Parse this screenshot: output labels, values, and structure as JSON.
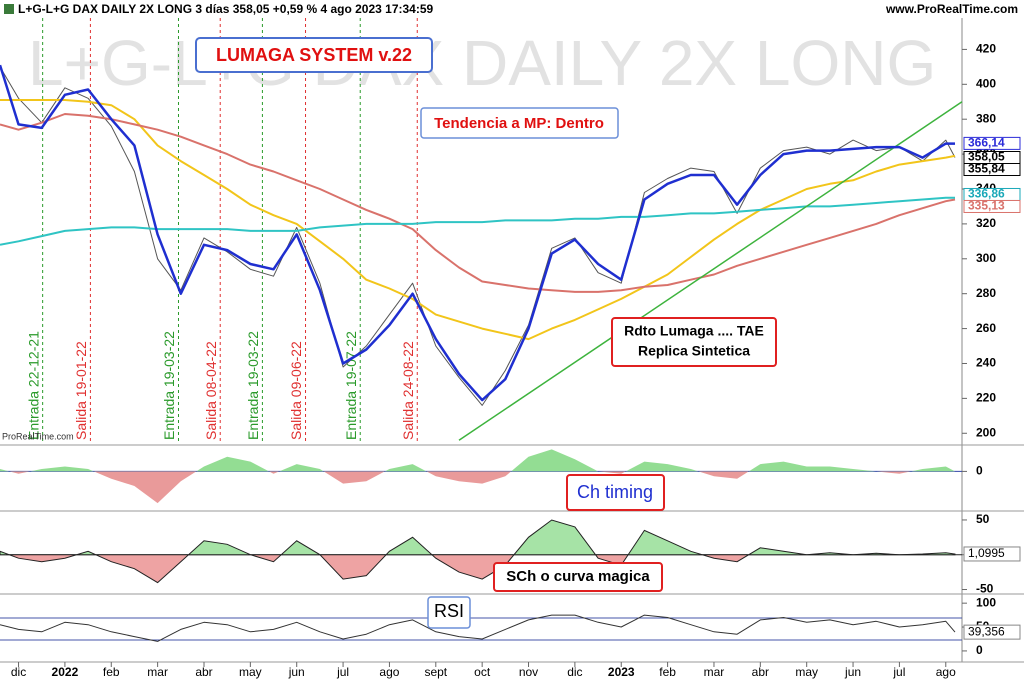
{
  "header": {
    "title": "L+G-L+G DAX DAILY 2X LONG 3 días 358,05 +0,59 % 4 ago 2023 17:34:59",
    "site": "www.ProRealTime.com"
  },
  "chart_data": [
    {
      "type": "line",
      "watermark": "L+G-L+G DAX DAILY 2X LONG",
      "annotations": [
        "LUMAGA SYSTEM v.22",
        "Tendencia a MP: Dentro",
        "Rdto Lumaga .... TAE",
        "Replica Sintetica",
        "ProRealTime.com"
      ],
      "xlim": [
        -0.4,
        20.35
      ],
      "ylim": [
        195,
        438
      ],
      "yticks": [
        200,
        220,
        240,
        260,
        280,
        300,
        320,
        340,
        360,
        380,
        400,
        420
      ],
      "x": [
        -0.4,
        0,
        0.5,
        1,
        1.5,
        2,
        2.5,
        3,
        3.5,
        4,
        4.5,
        5,
        5.5,
        6,
        6.5,
        7,
        7.5,
        8,
        8.5,
        9,
        9.5,
        10,
        10.5,
        11,
        11.5,
        12,
        12.5,
        13,
        13.5,
        14,
        14.5,
        15,
        15.5,
        16,
        16.5,
        17,
        17.5,
        18,
        18.5,
        19,
        19.5,
        20,
        20.2
      ],
      "series": [
        {
          "color": "#555555",
          "width": 1,
          "values": [
            410,
            392,
            378,
            398,
            392,
            376,
            350,
            300,
            282,
            312,
            304,
            294,
            290,
            318,
            286,
            238,
            250,
            268,
            286,
            250,
            232,
            216,
            236,
            262,
            306,
            312,
            292,
            286,
            338,
            346,
            352,
            350,
            326,
            352,
            362,
            364,
            360,
            368,
            362,
            364,
            356,
            368,
            358.05
          ]
        },
        {
          "color": "#f2c51a",
          "width": 2,
          "values": [
            391,
            391,
            391,
            391,
            390,
            388,
            380,
            365,
            356,
            348,
            340,
            331,
            325,
            320,
            310,
            300,
            288,
            283,
            277,
            268,
            264,
            260,
            257,
            254,
            260,
            265,
            271,
            277,
            284,
            291,
            301,
            311,
            320,
            328,
            334,
            340,
            343,
            345,
            350,
            354,
            356,
            358,
            359
          ]
        },
        {
          "color": "#d9726b",
          "width": 2,
          "values": [
            377,
            374,
            378,
            383,
            382,
            380,
            377,
            374,
            370,
            365,
            360,
            354,
            350,
            345,
            340,
            334,
            328,
            323,
            317,
            305,
            295,
            287,
            285,
            283,
            282,
            281,
            281,
            282,
            284,
            285,
            288,
            291,
            296,
            300,
            304,
            308,
            312,
            316,
            320,
            325,
            329,
            333,
            334
          ]
        },
        {
          "color": "#2fc4c4",
          "width": 2,
          "values": [
            308,
            310,
            313,
            316,
            317,
            318,
            318,
            317,
            317,
            317,
            317,
            316,
            316,
            316,
            318,
            319,
            320,
            320,
            320,
            321,
            321,
            321,
            322,
            322,
            322,
            323,
            323,
            324,
            324,
            325,
            326,
            326,
            327,
            328,
            329,
            330,
            330,
            331,
            332,
            333,
            334,
            335,
            335
          ]
        },
        {
          "color": "#3db33d",
          "width": 1.5,
          "x": [
            9.5,
            20.35
          ],
          "values": [
            196,
            390
          ]
        },
        {
          "color": "#1f2fd0",
          "width": 2.5,
          "values": [
            411,
            377,
            375,
            394,
            397,
            380,
            365,
            314,
            280,
            308,
            305,
            297,
            294,
            314,
            282,
            240,
            248,
            262,
            280,
            254,
            234,
            219,
            231,
            260,
            303,
            311,
            297,
            288,
            334,
            343,
            348,
            348,
            331,
            348,
            360,
            362,
            362,
            363,
            364,
            364,
            358,
            366,
            366
          ]
        }
      ],
      "signals": [
        {
          "x": 0.52,
          "label": "Entrada 22-12-21",
          "color": "#2a9a2a"
        },
        {
          "x": 1.55,
          "label": "Salida 19-01-22",
          "color": "#e03030"
        },
        {
          "x": 3.45,
          "label": "Entrada 19-03-22",
          "color": "#2a9a2a"
        },
        {
          "x": 4.35,
          "label": "Salida 08-04-22",
          "color": "#e03030"
        },
        {
          "x": 5.26,
          "label": "Entrada 19-03-22",
          "color": "#2a9a2a"
        },
        {
          "x": 6.19,
          "label": "Salida 09-06-22",
          "color": "#e03030"
        },
        {
          "x": 7.37,
          "label": "Entrada 19-07-22",
          "color": "#2a9a2a"
        },
        {
          "x": 8.6,
          "label": "Salida 24-08-22",
          "color": "#e03030"
        }
      ],
      "price_labels": [
        {
          "value": 366.14,
          "label": "366,14",
          "color": "#2b2bd8"
        },
        {
          "value": 358.05,
          "label": "358,05",
          "color": "#000000"
        },
        {
          "value": 355.84,
          "label": "355,84",
          "color": "#000000"
        },
        {
          "value": 336.86,
          "label": "336,86",
          "color": "#1aa8b8"
        },
        {
          "value": 335.13,
          "label": "335,13",
          "color": "#d9726b"
        }
      ]
    },
    {
      "type": "area",
      "annotation": "Ch timing",
      "fill_colors": [
        "#93dd93",
        "#e99a9a"
      ],
      "line_color": null,
      "xlim": [
        -0.4,
        20.35
      ],
      "ylim": [
        -1.5,
        1.0
      ],
      "yticks": [
        0
      ],
      "x": [
        -0.4,
        0,
        0.5,
        1,
        1.5,
        2,
        2.5,
        3,
        3.5,
        4,
        4.5,
        5,
        5.5,
        6,
        6.5,
        7,
        7.5,
        8,
        8.5,
        9,
        9.5,
        10,
        10.5,
        11,
        11.5,
        12,
        12.5,
        13,
        13.5,
        14,
        14.5,
        15,
        15.5,
        16,
        16.5,
        17,
        17.5,
        18,
        18.5,
        19,
        19.5,
        20,
        20.2
      ],
      "values": [
        0.1,
        -0.1,
        0.1,
        0.2,
        0.1,
        -0.3,
        -0.6,
        -1.3,
        -0.4,
        0.2,
        0.6,
        0.4,
        -0.1,
        0.3,
        0.1,
        -0.5,
        -0.4,
        0.1,
        0.3,
        -0.2,
        -0.4,
        -0.5,
        -0.2,
        0.6,
        0.9,
        0.5,
        0.0,
        -0.1,
        0.4,
        0.3,
        0.1,
        -0.2,
        -0.3,
        0.3,
        0.4,
        0.2,
        0.2,
        0.1,
        0.0,
        -0.1,
        0.1,
        0.2,
        0.0
      ]
    },
    {
      "type": "area",
      "annotation": "SCh o curva magica",
      "fill_colors": [
        "#a6e3a6",
        "#eea3a3"
      ],
      "line_color": "#222222",
      "xlim": [
        -0.4,
        20.35
      ],
      "ylim": [
        -55,
        60
      ],
      "yticks": [
        -50,
        0,
        50
      ],
      "current": {
        "value": 1.0995,
        "label": "1,0995"
      },
      "x": [
        -0.4,
        0,
        0.5,
        1,
        1.5,
        2,
        2.5,
        3,
        3.5,
        4,
        4.5,
        5,
        5.5,
        6,
        6.5,
        7,
        7.5,
        8,
        8.5,
        9,
        9.5,
        10,
        10.5,
        11,
        11.5,
        12,
        12.5,
        13,
        13.5,
        14,
        14.5,
        15,
        15.5,
        16,
        16.5,
        17,
        17.5,
        18,
        18.5,
        19,
        19.5,
        20,
        20.2
      ],
      "values": [
        5,
        -5,
        -10,
        -5,
        5,
        -10,
        -20,
        -40,
        -10,
        20,
        15,
        0,
        -10,
        20,
        0,
        -35,
        -30,
        5,
        25,
        -5,
        -25,
        -35,
        -15,
        25,
        50,
        40,
        -5,
        -15,
        35,
        20,
        5,
        -5,
        -10,
        10,
        5,
        0,
        3,
        0,
        2,
        0,
        1,
        3,
        1.0995
      ]
    },
    {
      "type": "line",
      "annotation": "RSI",
      "xlim": [
        -0.4,
        20.35
      ],
      "ylim": [
        -19,
        115
      ],
      "yticks": [
        0,
        50,
        100
      ],
      "current": {
        "value": 39.356,
        "label": "39,356"
      },
      "xticks": [
        {
          "value": 0,
          "label": "dic"
        },
        {
          "value": 1,
          "label": "2022"
        },
        {
          "value": 2,
          "label": "feb"
        },
        {
          "value": 3,
          "label": "mar"
        },
        {
          "value": 4,
          "label": "abr"
        },
        {
          "value": 5,
          "label": "may"
        },
        {
          "value": 6,
          "label": "jun"
        },
        {
          "value": 7,
          "label": "jul"
        },
        {
          "value": 8,
          "label": "ago"
        },
        {
          "value": 9,
          "label": "sept"
        },
        {
          "value": 10,
          "label": "oct"
        },
        {
          "value": 11,
          "label": "nov"
        },
        {
          "value": 12,
          "label": "dic"
        },
        {
          "value": 13,
          "label": "2023"
        },
        {
          "value": 14,
          "label": "feb"
        },
        {
          "value": 15,
          "label": "mar"
        },
        {
          "value": 16,
          "label": "abr"
        },
        {
          "value": 17,
          "label": "may"
        },
        {
          "value": 18,
          "label": "jun"
        },
        {
          "value": 19,
          "label": "jul"
        },
        {
          "value": 20,
          "label": "ago"
        }
      ],
      "x": [
        -0.4,
        0,
        0.5,
        1,
        1.5,
        2,
        2.5,
        3,
        3.5,
        4,
        4.5,
        5,
        5.5,
        6,
        6.5,
        7,
        7.5,
        8,
        8.5,
        9,
        9.5,
        10,
        10.5,
        11,
        11.5,
        12,
        12.5,
        13,
        13.5,
        14,
        14.5,
        15,
        15.5,
        16,
        16.5,
        17,
        17.5,
        18,
        18.5,
        19,
        19.5,
        20,
        20.2
      ],
      "series": [
        {
          "color": "#333333",
          "width": 1,
          "values": [
            55,
            45,
            40,
            60,
            55,
            40,
            30,
            20,
            45,
            60,
            55,
            40,
            45,
            60,
            40,
            25,
            35,
            55,
            65,
            40,
            30,
            25,
            45,
            65,
            75,
            75,
            60,
            50,
            75,
            70,
            55,
            40,
            35,
            65,
            70,
            60,
            65,
            55,
            62,
            50,
            55,
            62,
            39.356
          ]
        }
      ]
    }
  ]
}
